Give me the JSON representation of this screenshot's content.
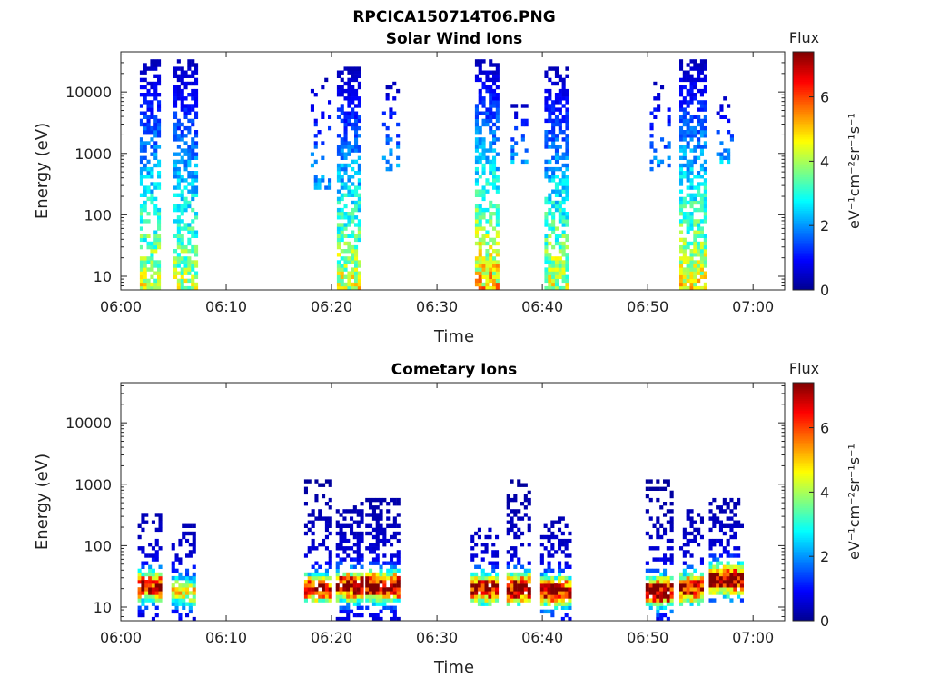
{
  "figure": {
    "title": "RPCICA150714T06.PNG"
  },
  "colormap": {
    "name": "jet",
    "stops": [
      "#00008f",
      "#0000ff",
      "#0080ff",
      "#00ffff",
      "#80ff80",
      "#ffff00",
      "#ff8000",
      "#ff0000",
      "#800000"
    ]
  },
  "chart_data": [
    {
      "type": "heatmap",
      "title": "Solar Wind Ions",
      "xlabel": "Time",
      "ylabel": "Energy (eV)",
      "x_tick_labels": [
        "06:00",
        "06:10",
        "06:20",
        "06:30",
        "06:40",
        "06:50",
        "07:00"
      ],
      "x_ticks_min": [
        0,
        10,
        20,
        30,
        40,
        50,
        60
      ],
      "xlim_min": [
        0,
        63
      ],
      "ylim": [
        6,
        45000
      ],
      "yscale": "log",
      "y_ticks": [
        10,
        100,
        1000,
        10000
      ],
      "y_tick_labels": [
        "10",
        "100",
        "1000",
        "10000"
      ],
      "colorbar": {
        "title": "Flux",
        "label": "eV⁻¹cm⁻²sr⁻¹s⁻¹",
        "range": [
          0,
          7.4
        ],
        "ticks": [
          0,
          2,
          4,
          6
        ],
        "tick_labels": [
          "0",
          "2",
          "4",
          "6"
        ]
      },
      "bursts": [
        {
          "t_start": 1.8,
          "t_end": 3.6,
          "e_min": 6,
          "e_max": 35000,
          "flux_peak": 4.5,
          "density": 0.55
        },
        {
          "t_start": 5.0,
          "t_end": 7.0,
          "e_min": 6,
          "e_max": 35000,
          "flux_peak": 4.3,
          "density": 0.55
        },
        {
          "t_start": 18.0,
          "t_end": 19.8,
          "e_min": 250,
          "e_max": 18000,
          "flux_peak": 2.3,
          "density": 0.18
        },
        {
          "t_start": 20.5,
          "t_end": 22.8,
          "e_min": 6,
          "e_max": 25000,
          "flux_peak": 4.6,
          "density": 0.6
        },
        {
          "t_start": 24.8,
          "t_end": 26.2,
          "e_min": 500,
          "e_max": 15000,
          "flux_peak": 2.3,
          "density": 0.2
        },
        {
          "t_start": 33.6,
          "t_end": 35.8,
          "e_min": 6,
          "e_max": 35000,
          "flux_peak": 5.2,
          "density": 0.6
        },
        {
          "t_start": 37.0,
          "t_end": 38.6,
          "e_min": 700,
          "e_max": 7000,
          "flux_peak": 2.3,
          "density": 0.2
        },
        {
          "t_start": 40.2,
          "t_end": 42.2,
          "e_min": 6,
          "e_max": 25000,
          "flux_peak": 4.5,
          "density": 0.6
        },
        {
          "t_start": 50.2,
          "t_end": 52.0,
          "e_min": 500,
          "e_max": 15000,
          "flux_peak": 2.3,
          "density": 0.2
        },
        {
          "t_start": 53.0,
          "t_end": 55.6,
          "e_min": 6,
          "e_max": 35000,
          "flux_peak": 4.8,
          "density": 0.6
        },
        {
          "t_start": 56.5,
          "t_end": 58.0,
          "e_min": 700,
          "e_max": 9000,
          "flux_peak": 2.3,
          "density": 0.2
        }
      ]
    },
    {
      "type": "heatmap",
      "title": "Cometary Ions",
      "xlabel": "Time",
      "ylabel": "Energy (eV)",
      "x_tick_labels": [
        "06:00",
        "06:10",
        "06:20",
        "06:30",
        "06:40",
        "06:50",
        "07:00"
      ],
      "x_ticks_min": [
        0,
        10,
        20,
        30,
        40,
        50,
        60
      ],
      "xlim_min": [
        0,
        63
      ],
      "ylim": [
        6,
        45000
      ],
      "yscale": "log",
      "y_ticks": [
        10,
        100,
        1000,
        10000
      ],
      "y_tick_labels": [
        "10",
        "100",
        "1000",
        "10000"
      ],
      "colorbar": {
        "title": "Flux",
        "label": "eV⁻¹cm⁻²sr⁻¹s⁻¹",
        "range": [
          0,
          7.4
        ],
        "ticks": [
          0,
          2,
          4,
          6
        ],
        "tick_labels": [
          "0",
          "2",
          "4",
          "6"
        ]
      },
      "bursts": [
        {
          "t_start": 1.6,
          "t_end": 3.6,
          "e_min": 6,
          "e_max": 320,
          "core_e": 22,
          "flux_peak": 6.5,
          "density": 0.7
        },
        {
          "t_start": 4.8,
          "t_end": 6.8,
          "e_min": 6,
          "e_max": 220,
          "core_e": 18,
          "flux_peak": 4.0,
          "density": 0.55
        },
        {
          "t_start": 17.4,
          "t_end": 19.8,
          "e_min": 12,
          "e_max": 1200,
          "core_e": 20,
          "flux_peak": 6.0,
          "density": 0.6
        },
        {
          "t_start": 20.4,
          "t_end": 22.8,
          "e_min": 6,
          "e_max": 500,
          "core_e": 22,
          "flux_peak": 7.0,
          "density": 0.75
        },
        {
          "t_start": 23.2,
          "t_end": 26.2,
          "e_min": 6,
          "e_max": 600,
          "core_e": 22,
          "flux_peak": 7.2,
          "density": 0.75
        },
        {
          "t_start": 33.2,
          "t_end": 35.6,
          "e_min": 10,
          "e_max": 200,
          "core_e": 20,
          "flux_peak": 6.8,
          "density": 0.65
        },
        {
          "t_start": 36.6,
          "t_end": 38.8,
          "e_min": 10,
          "e_max": 1200,
          "core_e": 20,
          "flux_peak": 7.2,
          "density": 0.7
        },
        {
          "t_start": 39.8,
          "t_end": 42.6,
          "e_min": 6,
          "e_max": 280,
          "core_e": 18,
          "flux_peak": 6.6,
          "density": 0.65
        },
        {
          "t_start": 49.8,
          "t_end": 52.4,
          "e_min": 6,
          "e_max": 1200,
          "core_e": 18,
          "flux_peak": 7.2,
          "density": 0.65
        },
        {
          "t_start": 53.0,
          "t_end": 55.2,
          "e_min": 10,
          "e_max": 400,
          "core_e": 20,
          "flux_peak": 6.5,
          "density": 0.65
        },
        {
          "t_start": 55.8,
          "t_end": 58.8,
          "e_min": 12,
          "e_max": 600,
          "core_e": 28,
          "flux_peak": 7.2,
          "density": 0.7
        }
      ]
    }
  ]
}
